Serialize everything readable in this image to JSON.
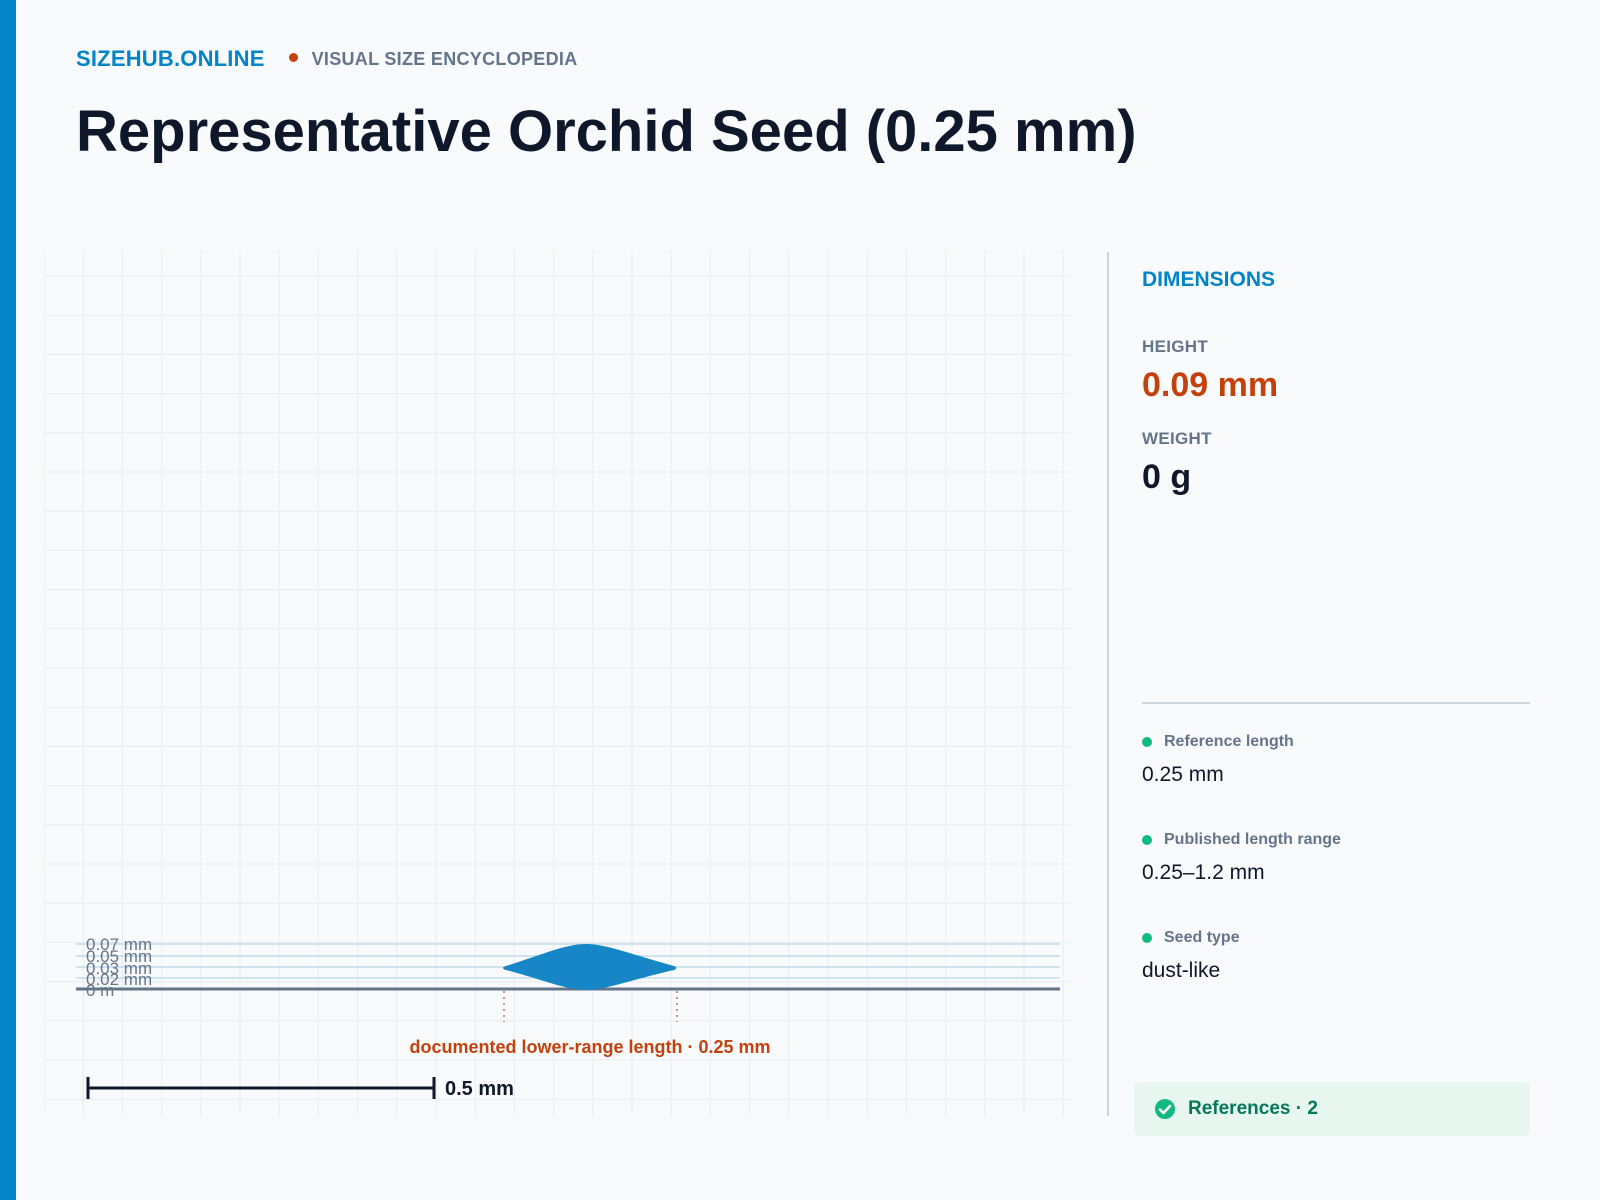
{
  "header": {
    "brand": "SIZEHUB.ONLINE",
    "tagline": "VISUAL SIZE ENCYCLOPEDIA"
  },
  "title": "Representative Orchid Seed (0.25 mm)",
  "diagram": {
    "ruler_labels": [
      "0 m",
      "0.02 mm",
      "0.03 mm",
      "0.05 mm",
      "0.07 mm"
    ],
    "annotation": "documented lower-range length · 0.25 mm",
    "scale_bar_label": "0.5 mm"
  },
  "dimensions": {
    "heading": "DIMENSIONS",
    "height_label": "HEIGHT",
    "height_value": "0.09 mm",
    "weight_label": "WEIGHT",
    "weight_value": "0 g"
  },
  "facts": [
    {
      "label": "Reference length",
      "value": "0.25 mm"
    },
    {
      "label": "Published length range",
      "value": "0.25–1.2 mm"
    },
    {
      "label": "Seed type",
      "value": "dust-like"
    }
  ],
  "references": {
    "label": "References · 2",
    "icon": "check-circle-icon"
  },
  "colors": {
    "accent": "#0284c7",
    "highlight": "#c2410c",
    "seed": "#1786c6",
    "success": "#10b981"
  }
}
